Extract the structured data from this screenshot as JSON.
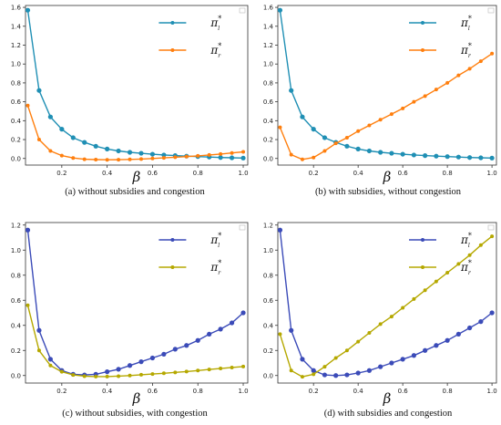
{
  "chart_data": [
    {
      "type": "line",
      "caption": "(a) without subsidies and congestion",
      "xlabel": "β",
      "xlim": [
        0.04,
        1.02
      ],
      "ylim": [
        -0.07,
        1.62
      ],
      "xticks": [
        "0.2",
        "0.4",
        "0.6",
        "0.8",
        "1.0"
      ],
      "yticks": [
        "0.0",
        "0.2",
        "0.4",
        "0.6",
        "0.8",
        "1.0",
        "1.2",
        "1.4",
        "1.6"
      ],
      "legend_position": "top-right",
      "x": [
        0.05,
        0.1,
        0.15,
        0.2,
        0.25,
        0.3,
        0.35,
        0.4,
        0.45,
        0.5,
        0.55,
        0.6,
        0.65,
        0.7,
        0.75,
        0.8,
        0.85,
        0.9,
        0.95,
        1.0
      ],
      "series": [
        {
          "name": "π",
          "sup": "*",
          "sub": "l",
          "color": "#1f8fb4",
          "values": [
            1.57,
            0.72,
            0.44,
            0.31,
            0.22,
            0.17,
            0.13,
            0.1,
            0.08,
            0.065,
            0.055,
            0.045,
            0.037,
            0.03,
            0.025,
            0.02,
            0.015,
            0.01,
            0.007,
            0.004
          ]
        },
        {
          "name": "π",
          "sup": "*",
          "sub": "r",
          "color": "#ff7f0e",
          "values": [
            0.56,
            0.2,
            0.08,
            0.03,
            0.005,
            -0.008,
            -0.012,
            -0.014,
            -0.013,
            -0.01,
            -0.006,
            0.0,
            0.006,
            0.013,
            0.02,
            0.028,
            0.037,
            0.047,
            0.058,
            0.07
          ]
        }
      ]
    },
    {
      "type": "line",
      "caption": "(b) with subsidies, without congestion",
      "xlabel": "β",
      "xlim": [
        0.04,
        1.02
      ],
      "ylim": [
        -0.07,
        1.62
      ],
      "xticks": [
        "0.2",
        "0.4",
        "0.6",
        "0.8",
        "1.0"
      ],
      "yticks": [
        "0.0",
        "0.2",
        "0.4",
        "0.6",
        "0.8",
        "1.0",
        "1.2",
        "1.4",
        "1.6"
      ],
      "legend_position": "top-right",
      "x": [
        0.05,
        0.1,
        0.15,
        0.2,
        0.25,
        0.3,
        0.35,
        0.4,
        0.45,
        0.5,
        0.55,
        0.6,
        0.65,
        0.7,
        0.75,
        0.8,
        0.85,
        0.9,
        0.95,
        1.0
      ],
      "series": [
        {
          "name": "π",
          "sup": "*",
          "sub": "l",
          "color": "#1f8fb4",
          "values": [
            1.57,
            0.72,
            0.44,
            0.31,
            0.22,
            0.17,
            0.13,
            0.1,
            0.08,
            0.065,
            0.055,
            0.045,
            0.037,
            0.03,
            0.025,
            0.02,
            0.015,
            0.01,
            0.007,
            0.004
          ]
        },
        {
          "name": "π",
          "sup": "*",
          "sub": "r",
          "color": "#ff7f0e",
          "values": [
            0.33,
            0.04,
            -0.01,
            0.01,
            0.08,
            0.16,
            0.22,
            0.29,
            0.35,
            0.41,
            0.47,
            0.53,
            0.6,
            0.66,
            0.73,
            0.8,
            0.88,
            0.95,
            1.03,
            1.11
          ]
        }
      ]
    },
    {
      "type": "line",
      "caption": "(c) without subsidies, with congestion",
      "xlabel": "β",
      "xlim": [
        0.04,
        1.02
      ],
      "ylim": [
        -0.06,
        1.22
      ],
      "xticks": [
        "0.2",
        "0.4",
        "0.6",
        "0.8",
        "1.0"
      ],
      "yticks": [
        "0.0",
        "0.2",
        "0.4",
        "0.6",
        "0.8",
        "1.0",
        "1.2"
      ],
      "legend_position": "top-right",
      "x": [
        0.05,
        0.1,
        0.15,
        0.2,
        0.25,
        0.3,
        0.35,
        0.4,
        0.45,
        0.5,
        0.55,
        0.6,
        0.65,
        0.7,
        0.75,
        0.8,
        0.85,
        0.9,
        0.95,
        1.0
      ],
      "series": [
        {
          "name": "π",
          "sup": "*",
          "sub": "l",
          "color": "#3b4bb8",
          "values": [
            1.16,
            0.36,
            0.13,
            0.04,
            0.01,
            0.005,
            0.01,
            0.03,
            0.05,
            0.08,
            0.11,
            0.14,
            0.17,
            0.21,
            0.24,
            0.28,
            0.33,
            0.37,
            0.42,
            0.5
          ]
        },
        {
          "name": "π",
          "sup": "*",
          "sub": "r",
          "color": "#b5a800",
          "values": [
            0.56,
            0.2,
            0.08,
            0.03,
            0.005,
            -0.005,
            -0.008,
            -0.008,
            -0.005,
            0.0,
            0.006,
            0.012,
            0.018,
            0.025,
            0.032,
            0.04,
            0.048,
            0.056,
            0.064,
            0.072
          ]
        }
      ]
    },
    {
      "type": "line",
      "caption": "(d) with subsidies and congestion",
      "xlabel": "β",
      "xlim": [
        0.04,
        1.02
      ],
      "ylim": [
        -0.06,
        1.22
      ],
      "xticks": [
        "0.2",
        "0.4",
        "0.6",
        "0.8",
        "1.0"
      ],
      "yticks": [
        "0.0",
        "0.2",
        "0.4",
        "0.6",
        "0.8",
        "1.0",
        "1.2"
      ],
      "legend_position": "top-right",
      "x": [
        0.05,
        0.1,
        0.15,
        0.2,
        0.25,
        0.3,
        0.35,
        0.4,
        0.45,
        0.5,
        0.55,
        0.6,
        0.65,
        0.7,
        0.75,
        0.8,
        0.85,
        0.9,
        0.95,
        1.0
      ],
      "series": [
        {
          "name": "π",
          "sup": "*",
          "sub": "l",
          "color": "#3b4bb8",
          "values": [
            1.16,
            0.36,
            0.13,
            0.04,
            0.005,
            0.0,
            0.005,
            0.02,
            0.04,
            0.07,
            0.1,
            0.13,
            0.16,
            0.2,
            0.24,
            0.28,
            0.33,
            0.38,
            0.43,
            0.5
          ]
        },
        {
          "name": "π",
          "sup": "*",
          "sub": "r",
          "color": "#b5a800",
          "values": [
            0.33,
            0.04,
            -0.01,
            0.01,
            0.07,
            0.14,
            0.2,
            0.27,
            0.34,
            0.41,
            0.47,
            0.54,
            0.61,
            0.68,
            0.75,
            0.82,
            0.89,
            0.96,
            1.04,
            1.11
          ]
        }
      ]
    }
  ]
}
